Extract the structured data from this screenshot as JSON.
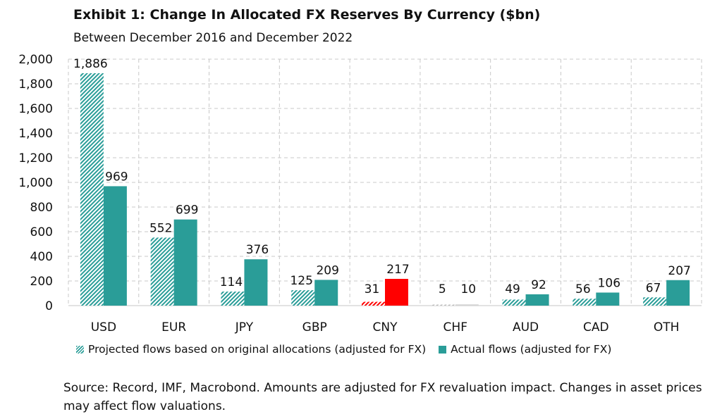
{
  "header": {
    "title": "Exhibit 1: Change In Allocated FX Reserves By Currency ($bn)",
    "subtitle": "Between December 2016 and December 2022"
  },
  "footnote": "Source: Record, IMF, Macrobond. Amounts are adjusted for FX revaluation impact. Changes in asset prices may affect flow valuations.",
  "colors": {
    "actual": "#2a9d98",
    "highlight": "#ff0000",
    "grid": "#c8c8c8"
  },
  "chart_data": {
    "type": "bar",
    "categories": [
      "USD",
      "EUR",
      "JPY",
      "GBP",
      "CNY",
      "CHF",
      "AUD",
      "CAD",
      "OTH"
    ],
    "series": [
      {
        "name": "Projected flows based on original allocations (adjusted for FX)",
        "values": [
          1886,
          552,
          114,
          125,
          31,
          5,
          49,
          56,
          67
        ],
        "pattern": "hatched"
      },
      {
        "name": "Actual flows (adjusted for FX)",
        "values": [
          969,
          699,
          376,
          209,
          217,
          10,
          92,
          106,
          207
        ],
        "pattern": "solid"
      }
    ],
    "highlight_category": "CNY",
    "y_ticks": [
      "0",
      "200",
      "400",
      "600",
      "800",
      "1,000",
      "1,200",
      "1,400",
      "1,600",
      "1,800",
      "2,000"
    ],
    "ylim": [
      0,
      2000
    ],
    "grid": true,
    "legend_position": "bottom"
  }
}
